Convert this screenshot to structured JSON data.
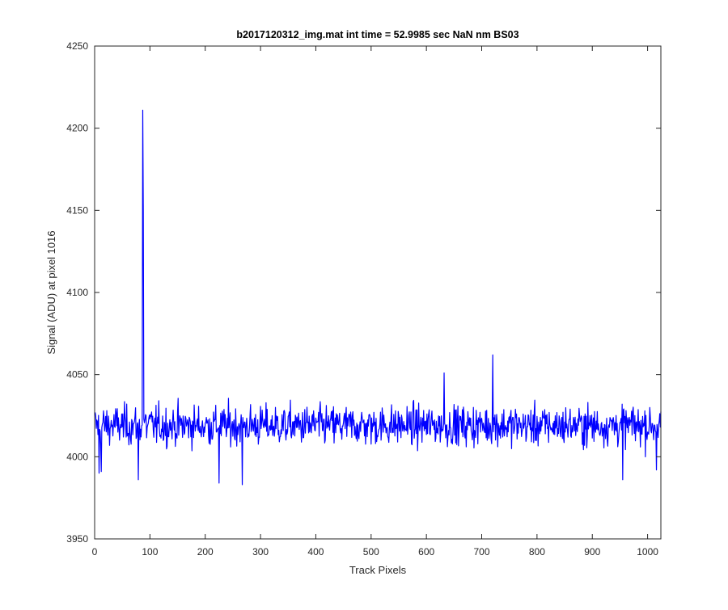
{
  "chart_data": {
    "type": "line",
    "title": "b2017120312_img.mat int time = 52.9985 sec  NaN nm BS03",
    "xlabel": "Track Pixels",
    "ylabel": "Signal (ADU) at pixel 1016",
    "xlim": [
      0,
      1024
    ],
    "ylim": [
      3950,
      4250
    ],
    "xticks": [
      0,
      100,
      200,
      300,
      400,
      500,
      600,
      700,
      800,
      900,
      1000
    ],
    "yticks": [
      3950,
      4000,
      4050,
      4100,
      4150,
      4200,
      4250
    ],
    "grid": false,
    "box": true,
    "series_color": "#0000ff",
    "noise_baseline": 4019,
    "features": [
      {
        "x": 8,
        "y": 3990
      },
      {
        "x": 12,
        "y": 3991
      },
      {
        "x": 79,
        "y": 3986
      },
      {
        "x": 87,
        "y": 4211
      },
      {
        "x": 88,
        "y": 4150
      },
      {
        "x": 225,
        "y": 3984
      },
      {
        "x": 267,
        "y": 3983
      },
      {
        "x": 632,
        "y": 4051
      },
      {
        "x": 720,
        "y": 4062
      },
      {
        "x": 955,
        "y": 3986
      },
      {
        "x": 1016,
        "y": 3992
      }
    ]
  }
}
